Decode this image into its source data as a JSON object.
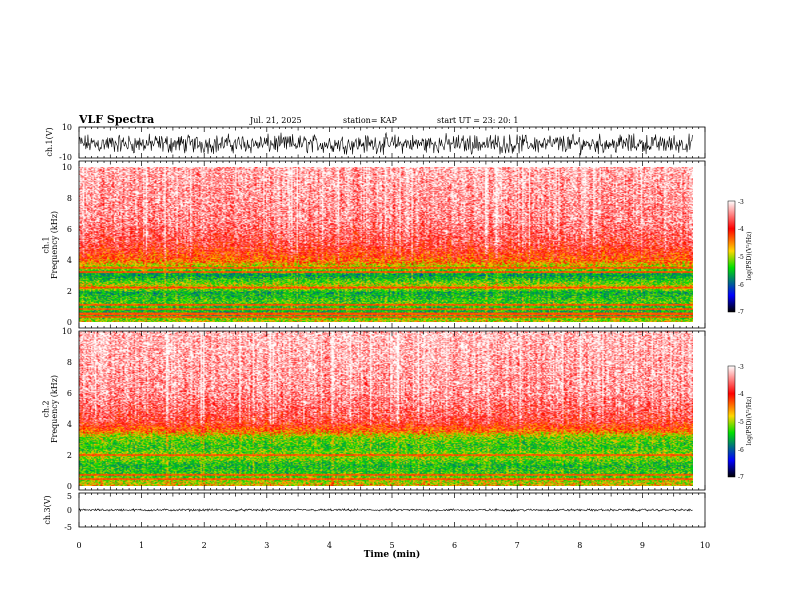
{
  "header": {
    "title": "VLF Spectra",
    "date": "Jul. 21, 2025",
    "station": "station= KAP",
    "start_ut": "start UT =  23: 20: 1"
  },
  "colors": {
    "colormap": [
      "#ffffff",
      "#ff0000",
      "#ffd700",
      "#00e000",
      "#0000ff",
      "#000000"
    ],
    "line": "#000000"
  },
  "chart_data": [
    {
      "id": "ch1-waveform",
      "type": "line",
      "ylabel": "ch.1(V)",
      "yticks": [
        "10",
        "-10"
      ],
      "ylim": [
        -10,
        10
      ],
      "xlim": [
        0,
        10
      ],
      "data_extent_min": 9.8,
      "trace": {
        "center": -0.6,
        "amplitude_range": [
          -8,
          7
        ]
      }
    },
    {
      "id": "ch1-spectrogram",
      "type": "heatmap",
      "ylabel": "ch.1\nFrequency (kHz)",
      "yticks": [
        "0",
        "2",
        "4",
        "6",
        "8",
        "10"
      ],
      "ylim": [
        0,
        10
      ],
      "xlim": [
        0,
        10
      ],
      "data_extent_min": 9.8,
      "colorbar": {
        "label": "log(PSD)(V²/Hz)",
        "ticks": [
          "-3",
          "-4",
          "-5",
          "-6",
          "-7"
        ],
        "range": [
          -7,
          -3
        ]
      },
      "freq_profile_kHz_logpsd": [
        [
          0,
          -4.4
        ],
        [
          0.5,
          -5.0
        ],
        [
          1.2,
          -4.7
        ],
        [
          1.9,
          -5.0
        ],
        [
          2.2,
          -4.3
        ],
        [
          2.6,
          -4.7
        ],
        [
          3.0,
          -5.1
        ],
        [
          3.4,
          -4.6
        ],
        [
          4.0,
          -4.0
        ],
        [
          5.0,
          -3.6
        ],
        [
          6.5,
          -3.35
        ],
        [
          10,
          -3.2
        ]
      ],
      "lines_kHz": [
        0.3,
        0.5,
        0.8,
        1.1,
        2.2,
        3.2,
        3.5
      ]
    },
    {
      "id": "ch2-spectrogram",
      "type": "heatmap",
      "ylabel": "ch.2\nFrequency (kHz)",
      "yticks": [
        "0",
        "2",
        "4",
        "6",
        "8",
        "10"
      ],
      "ylim": [
        0,
        10
      ],
      "xlim": [
        0,
        10
      ],
      "data_extent_min": 9.8,
      "colorbar": {
        "label": "log(PSD)(V²/Hz)",
        "ticks": [
          "-3",
          "-4",
          "-5",
          "-6",
          "-7"
        ],
        "range": [
          -7,
          -3
        ]
      },
      "freq_profile_kHz_logpsd": [
        [
          0,
          -4.3
        ],
        [
          0.6,
          -4.7
        ],
        [
          1.3,
          -4.9
        ],
        [
          1.9,
          -4.5
        ],
        [
          2.5,
          -4.8
        ],
        [
          3.1,
          -4.6
        ],
        [
          3.6,
          -4.0
        ],
        [
          4.2,
          -3.6
        ],
        [
          6.0,
          -3.3
        ],
        [
          10,
          -3.15
        ]
      ],
      "lines_kHz": [
        0.4,
        0.7,
        2.0
      ]
    },
    {
      "id": "ch3-waveform",
      "type": "line",
      "ylabel": "ch.3(V)",
      "yticks": [
        "5",
        "0",
        "-5"
      ],
      "ylim": [
        -5,
        5
      ],
      "xlim": [
        0,
        10
      ],
      "data_extent_min": 9.8,
      "trace": {
        "center": 0,
        "amplitude_range": [
          -0.4,
          0.4
        ]
      }
    }
  ],
  "xaxis": {
    "label": "Time (min)",
    "ticks": [
      "0",
      "1",
      "2",
      "3",
      "4",
      "5",
      "6",
      "7",
      "8",
      "9",
      "10"
    ]
  }
}
